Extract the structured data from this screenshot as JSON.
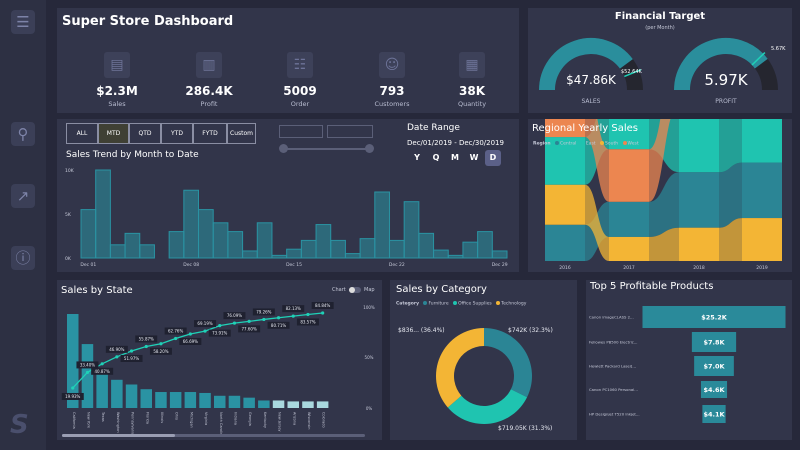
{
  "sidebar": {
    "items": [
      {
        "icon": "sliders-icon"
      },
      {
        "icon": "search-icon"
      },
      {
        "icon": "chart-icon"
      },
      {
        "icon": "info-icon"
      }
    ],
    "logo": "S"
  },
  "header": {
    "title": "Super Store Dashboard"
  },
  "kpis": [
    {
      "value": "$2.3M",
      "label": "Sales",
      "icon": "sales-icon"
    },
    {
      "value": "286.4K",
      "label": "Profit",
      "icon": "profit-icon"
    },
    {
      "value": "5009",
      "label": "Order",
      "icon": "order-icon"
    },
    {
      "value": "793",
      "label": "Customers",
      "icon": "customers-icon"
    },
    {
      "value": "38K",
      "label": "Quantity",
      "icon": "quantity-icon"
    }
  ],
  "financial": {
    "title": "Financial Target",
    "subtitle": "(per Month)",
    "gauges": [
      {
        "value": 47.86,
        "value_label": "$47.86K",
        "target": 52.64,
        "target_label": "$52.64K",
        "label": "SALES"
      },
      {
        "value": 5.97,
        "value_label": "5.97K",
        "target": 5.67,
        "target_label": "5.67K",
        "label": "PROFIT"
      }
    ]
  },
  "filters": {
    "buttons": [
      "ALL",
      "MTD",
      "QTD",
      "YTD",
      "FYTD",
      "Custom"
    ],
    "active": "MTD"
  },
  "date_range": {
    "label": "Date Range",
    "value": "Dec/01/2019 - Dec/30/2019",
    "granularity": [
      "Y",
      "Q",
      "M",
      "W",
      "D"
    ],
    "active": "D"
  },
  "chart_data": [
    {
      "type": "area",
      "title": "Sales Trend by Month to Date",
      "step": true,
      "x": [
        "Dec 01",
        "Dec 02",
        "Dec 03",
        "Dec 04",
        "Dec 05",
        "Dec 06",
        "Dec 07",
        "Dec 08",
        "Dec 09",
        "Dec 10",
        "Dec 11",
        "Dec 12",
        "Dec 13",
        "Dec 14",
        "Dec 15",
        "Dec 16",
        "Dec 17",
        "Dec 18",
        "Dec 19",
        "Dec 20",
        "Dec 21",
        "Dec 22",
        "Dec 23",
        "Dec 24",
        "Dec 25",
        "Dec 26",
        "Dec 27",
        "Dec 28",
        "Dec 29"
      ],
      "values": [
        5500,
        10000,
        1500,
        2800,
        1500,
        0,
        3000,
        7700,
        5500,
        4000,
        3000,
        800,
        4000,
        300,
        1000,
        2000,
        3800,
        2000,
        500,
        2200,
        7500,
        2000,
        6400,
        2800,
        900,
        300,
        1800,
        3000,
        800
      ],
      "xticks": [
        "Dec 01",
        "Dec 08",
        "Dec 15",
        "Dec 22",
        "Dec 29"
      ],
      "yticks": [
        "0K",
        "5K",
        "10K"
      ],
      "ylim": [
        0,
        10000
      ],
      "color": "#2a93a3"
    },
    {
      "type": "ribbon",
      "title": "Regional Yearly Sales",
      "legend_title": "Region",
      "categories": [
        "2016",
        "2017",
        "2018",
        "2019"
      ],
      "series": [
        {
          "name": "Central",
          "values": [
            98,
            95,
            150,
            150
          ],
          "color": "#2b8595"
        },
        {
          "name": "East",
          "values": [
            129,
            150,
            181,
            214
          ],
          "color": "#1fc4b0"
        },
        {
          "name": "South",
          "values": [
            108,
            65,
            90,
            116
          ],
          "color": "#f3b535"
        },
        {
          "name": "West",
          "values": [
            142,
            142,
            186,
            253
          ],
          "color": "#ec8650"
        }
      ]
    },
    {
      "type": "bar",
      "title": "Sales by State",
      "toggle": [
        "Chart",
        "Map"
      ],
      "categories": [
        "California",
        "New York",
        "Texas",
        "Washington",
        "Pennsylvania",
        "Florida",
        "Illinois",
        "Ohio",
        "Michigan",
        "Virginia",
        "North Carolina",
        "Indiana",
        "Georgia",
        "Kentucky",
        "New Jersey",
        "Arizona",
        "Wisconsin",
        "Colorado"
      ],
      "values": [
        100,
        68,
        36,
        30,
        25,
        20,
        17,
        17,
        17,
        16,
        13,
        13,
        11,
        8,
        8,
        7,
        7,
        7
      ],
      "cumulative_pct": [
        19.93,
        33.4,
        40.87,
        46.9,
        51.97,
        55.87,
        58.2,
        62.76,
        66.69,
        69.19,
        73.91,
        76.09,
        77.6,
        79.26,
        80.71,
        82.13,
        83.57,
        84.84
      ],
      "cumulative_labels": [
        "19.93%",
        "33.40%",
        "40.87%",
        "46.90%",
        "51.97%",
        "55.87%",
        "58.20%",
        "62.76%",
        "66.69%",
        "69.19%",
        "73.91%",
        "76.09%",
        "77.60%",
        "79.26%",
        "80.71%",
        "82.13%",
        "83.57%",
        "84.84%"
      ],
      "y2ticks": [
        "0%",
        "50%",
        "100%"
      ],
      "bar_color": "#2a93a3",
      "light_bar_color": "#a9d8de",
      "line_color": "#1fd1b7"
    },
    {
      "type": "pie",
      "title": "Sales by Category",
      "legend_title": "Category",
      "donut": true,
      "slices": [
        {
          "name": "Furniture",
          "value": 742,
          "pct": 32.3,
          "label": "$742K (32.3%)",
          "color": "#2b8595"
        },
        {
          "name": "Office Supplies",
          "value": 719.05,
          "pct": 31.3,
          "label": "$719.05K (31.3%)",
          "color": "#1fc4b0"
        },
        {
          "name": "Technology",
          "value": 836,
          "pct": 36.4,
          "label": "$836... (36.4%)",
          "color": "#f3b535"
        }
      ]
    },
    {
      "type": "bar",
      "title": "Top 5 Profitable Products",
      "orientation": "funnel",
      "categories": [
        "Canon imageCLASS 2...",
        "Fellowes PB500 Electric...",
        "Hewlett Packard LaserJ...",
        "Canon PC1060 Personal...",
        "HP Designjet T520 Inkjet..."
      ],
      "values": [
        25.2,
        7.8,
        7.0,
        4.6,
        4.1
      ],
      "labels": [
        "$25.2K",
        "$7.8K",
        "$7.0K",
        "$4.6K",
        "$4.1K"
      ],
      "color": "#2a8a9a"
    }
  ]
}
